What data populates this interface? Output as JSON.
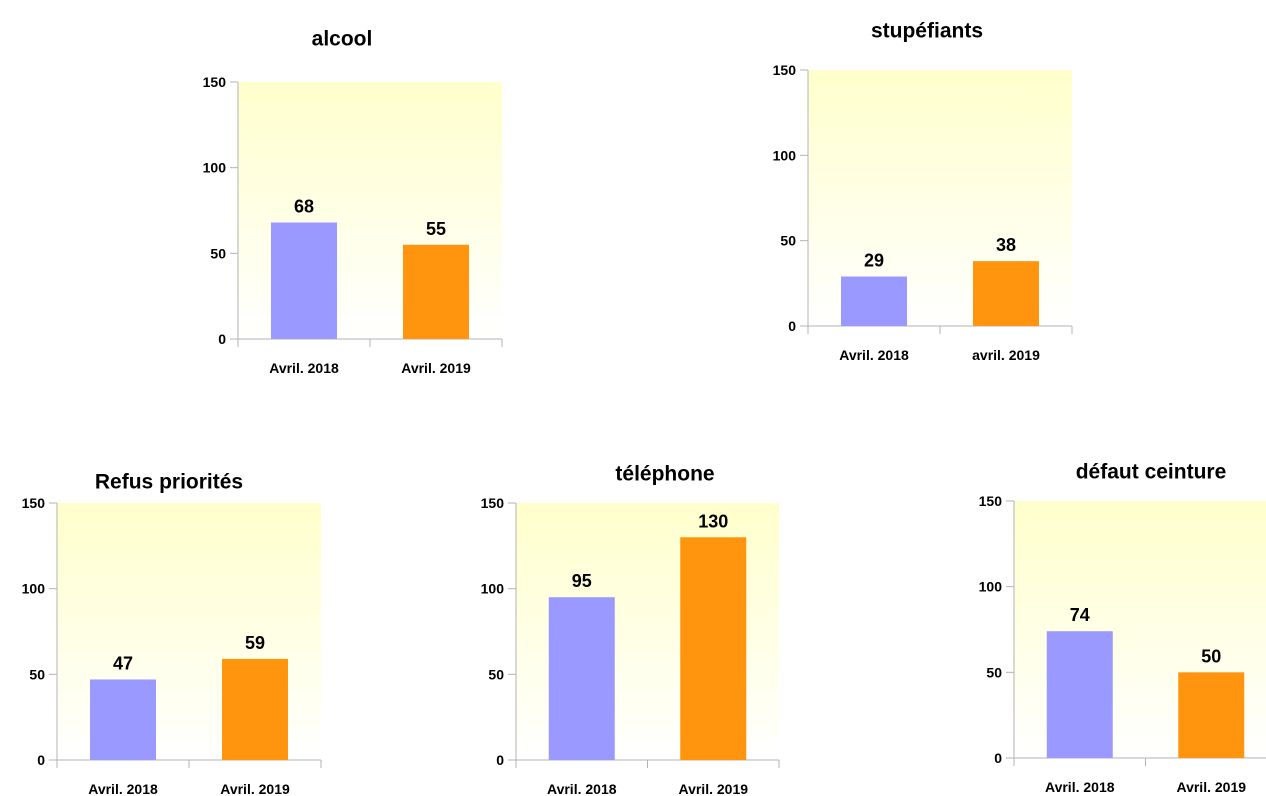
{
  "colors": {
    "bar_2018": "#9999ff",
    "bar_2019": "#ff950e",
    "plot_top": "#ffffcc",
    "plot_bottom": "#ffffff"
  },
  "chart_data": [
    {
      "type": "bar",
      "title": "alcool",
      "categories": [
        "Avril. 2018",
        "Avril. 2019"
      ],
      "values": [
        68,
        55
      ],
      "ylim": [
        0,
        150
      ],
      "yticks": [
        0,
        50,
        100,
        150
      ],
      "grid": false,
      "legend": "none"
    },
    {
      "type": "bar",
      "title": "stupéfiants",
      "categories": [
        "Avril. 2018",
        "avril. 2019"
      ],
      "values": [
        29,
        38
      ],
      "ylim": [
        0,
        150
      ],
      "yticks": [
        0,
        50,
        100,
        150
      ],
      "grid": false,
      "legend": "none"
    },
    {
      "type": "bar",
      "title": "Refus priorités",
      "categories": [
        "Avril. 2018",
        "Avril. 2019"
      ],
      "values": [
        47,
        59
      ],
      "ylim": [
        0,
        150
      ],
      "yticks": [
        0,
        50,
        100,
        150
      ],
      "grid": false,
      "legend": "none"
    },
    {
      "type": "bar",
      "title": "téléphone",
      "categories": [
        "Avril. 2018",
        "Avril. 2019"
      ],
      "values": [
        95,
        130
      ],
      "ylim": [
        0,
        150
      ],
      "yticks": [
        0,
        50,
        100,
        150
      ],
      "grid": false,
      "legend": "none"
    },
    {
      "type": "bar",
      "title": "défaut ceinture",
      "categories": [
        "Avril. 2018",
        "Avril. 2019"
      ],
      "values": [
        74,
        50
      ],
      "ylim": [
        0,
        150
      ],
      "yticks": [
        0,
        50,
        100,
        150
      ],
      "grid": false,
      "legend": "none"
    }
  ]
}
